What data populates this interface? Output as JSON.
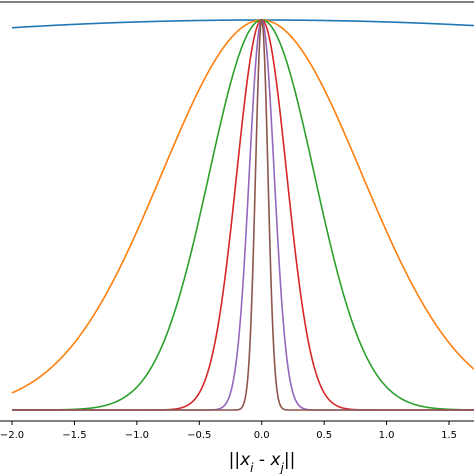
{
  "chart_data": {
    "type": "line",
    "title": "",
    "xlabel": "||x_i - x_j||",
    "ylabel": "",
    "xlim": [
      -2.0,
      1.7
    ],
    "ylim": [
      -0.03,
      1.0
    ],
    "x_ticks": [
      -2.0,
      -1.5,
      -1.0,
      -0.5,
      0.0,
      0.5,
      1.0,
      1.5
    ],
    "x_tick_labels": [
      "−2.0",
      "−1.5",
      "−1.0",
      "−0.5",
      "0.0",
      "0.5",
      "1.0",
      "1.5"
    ],
    "grid": false,
    "legend": "none",
    "series": [
      {
        "color": "#1f77b4",
        "sigma": 10.0
      },
      {
        "color": "#ff7f0e",
        "sigma": 0.8
      },
      {
        "color": "#2ca02c",
        "sigma": 0.42
      },
      {
        "color": "#d62728",
        "sigma": 0.2
      },
      {
        "color": "#9467bd",
        "sigma": 0.1
      },
      {
        "color": "#8c564b",
        "sigma": 0.05
      }
    ],
    "function": "exp(-x^2 / (2*sigma^2))"
  }
}
